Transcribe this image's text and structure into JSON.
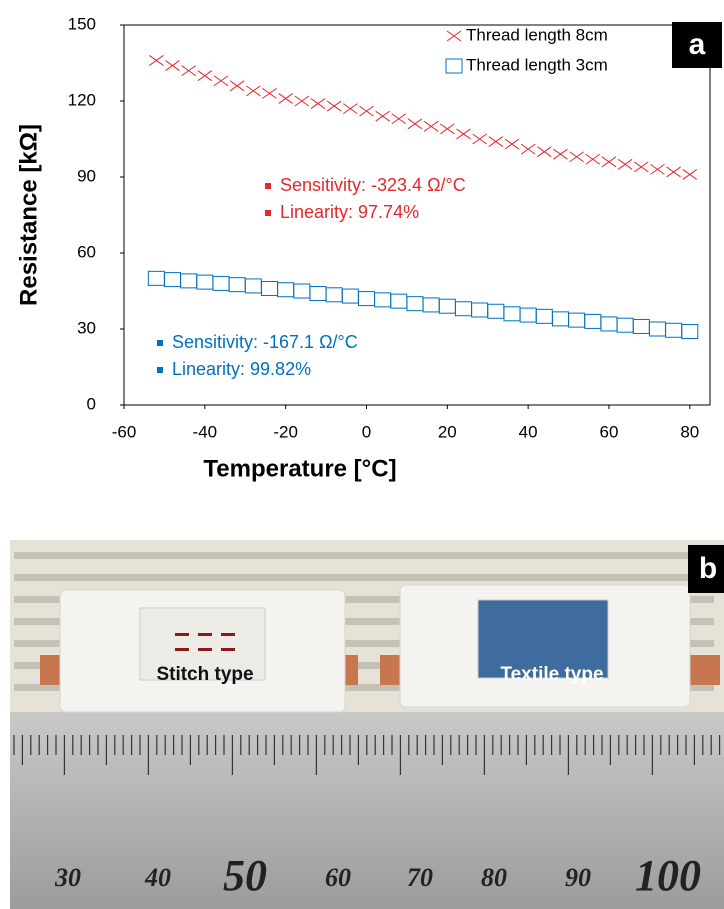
{
  "chart_data": {
    "type": "scatter",
    "panel_label": "a",
    "xlabel": "Temperature [°C]",
    "ylabel": "Resistance [kΩ]",
    "x": [
      -52,
      -48,
      -44,
      -40,
      -36,
      -32,
      -28,
      -24,
      -20,
      -16,
      -12,
      -8,
      -4,
      0,
      4,
      8,
      12,
      16,
      20,
      24,
      28,
      32,
      36,
      40,
      44,
      48,
      52,
      56,
      60,
      64,
      68,
      72,
      76,
      80
    ],
    "series": [
      {
        "name": "Thread length 8cm",
        "color": "#e8262c",
        "marker": "x",
        "values": [
          136,
          134,
          132,
          130,
          128,
          126,
          124,
          123,
          121,
          120,
          119,
          118,
          117,
          116,
          114,
          113,
          111,
          110,
          109,
          107,
          105,
          104,
          103,
          101,
          100,
          99,
          98,
          97,
          96,
          95,
          94,
          93,
          92,
          91
        ]
      },
      {
        "name": "Thread length 3cm",
        "color": "#0070c0",
        "marker": "square",
        "values": [
          50,
          49.5,
          49,
          48.5,
          48,
          47.5,
          47,
          46,
          45.5,
          45,
          44,
          43.5,
          43,
          42,
          41.5,
          41,
          40,
          39.5,
          39,
          38,
          37.5,
          37,
          36,
          35.5,
          35,
          34,
          33.5,
          33,
          32,
          31.5,
          31,
          30,
          29.5,
          29
        ]
      }
    ],
    "annotations": [
      {
        "color": "#e8262c",
        "lines": [
          "Sensitivity: -323.4 Ω/°C",
          "Linearity: 97.74%"
        ]
      },
      {
        "color": "#0070c0",
        "lines": [
          "Sensitivity: -167.1 Ω/°C",
          "Linearity: 99.82%"
        ]
      }
    ],
    "xlim": [
      -60,
      85
    ],
    "xticks": [
      -60,
      -40,
      -20,
      0,
      20,
      40,
      60,
      80
    ],
    "ylim": [
      0,
      150
    ],
    "yticks": [
      0,
      30,
      60,
      90,
      120,
      150
    ],
    "grid": false
  },
  "panel_b": {
    "panel_label": "b",
    "sample_labels": [
      "Stitch type",
      "Textile type"
    ],
    "ruler_numbers": [
      "30",
      "40",
      "50",
      "60",
      "70",
      "80",
      "90",
      "100"
    ]
  }
}
